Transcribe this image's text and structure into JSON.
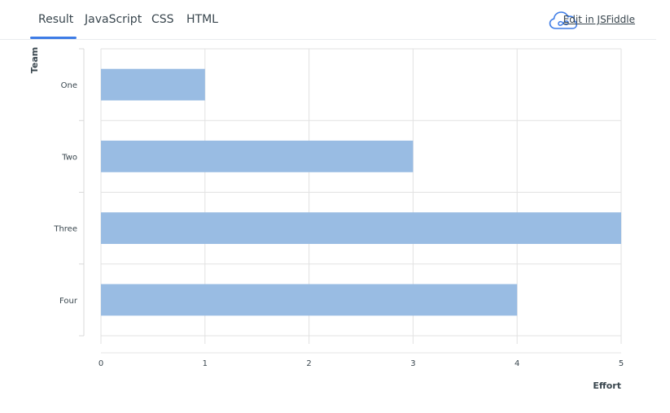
{
  "tabs": [
    {
      "label": "Result",
      "active": true
    },
    {
      "label": "JavaScript",
      "active": false
    },
    {
      "label": "CSS",
      "active": false
    },
    {
      "label": "HTML",
      "active": false
    }
  ],
  "jsfiddle": {
    "label": "Edit in JSFiddle",
    "icon": "jsfiddle-cloud-icon"
  },
  "colors": {
    "accent": "#3e7ce6",
    "bar": "#99bce3",
    "grid": "#e2e2e2"
  },
  "chart_data": {
    "type": "bar",
    "orientation": "horizontal",
    "categories": [
      "One",
      "Two",
      "Three",
      "Four"
    ],
    "values": [
      1,
      3,
      5,
      4
    ],
    "xlabel": "Effort",
    "ylabel": "Team",
    "xlim": [
      0,
      5
    ],
    "xticks": [
      0,
      1,
      2,
      3,
      4,
      5
    ],
    "grid": true
  }
}
